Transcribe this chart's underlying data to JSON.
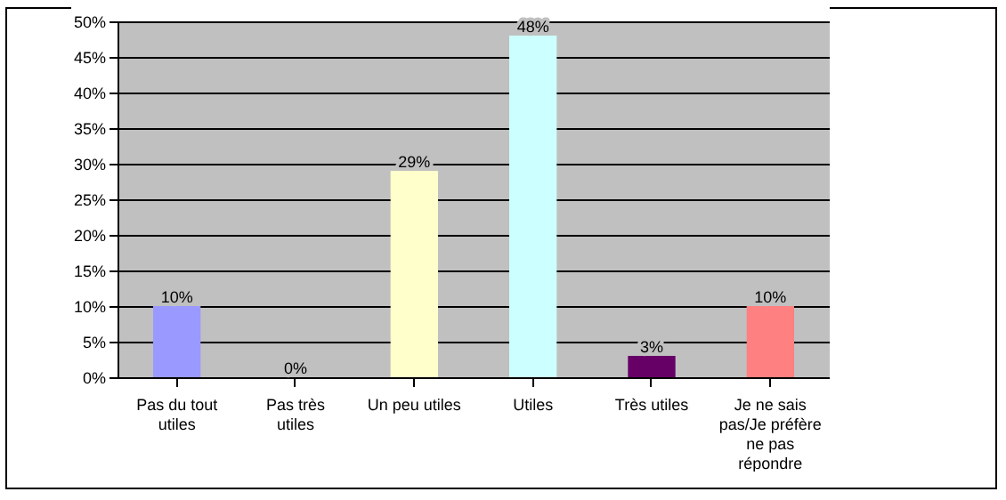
{
  "chart_data": {
    "type": "bar",
    "categories": [
      "Pas du tout utiles",
      "Pas très utiles",
      "Un peu utiles",
      "Utiles",
      "Très utiles",
      "Je ne sais pas/Je préfère ne pas répondre"
    ],
    "values": [
      10,
      0,
      29,
      48,
      3,
      10
    ],
    "colors": [
      "#9999ff",
      "#993366",
      "#ffffcc",
      "#ccffff",
      "#660066",
      "#ff8080"
    ],
    "value_labels": [
      "10%",
      "0%",
      "29%",
      "48%",
      "3%",
      "10%"
    ],
    "ylim": [
      0,
      50
    ],
    "yticks": [
      {
        "value": 0,
        "label": "0%"
      },
      {
        "value": 5,
        "label": "5%"
      },
      {
        "value": 10,
        "label": "10%"
      },
      {
        "value": 15,
        "label": "15%"
      },
      {
        "value": 20,
        "label": "20%"
      },
      {
        "value": 25,
        "label": "25%"
      },
      {
        "value": 30,
        "label": "30%"
      },
      {
        "value": 35,
        "label": "35%"
      },
      {
        "value": 40,
        "label": "40%"
      },
      {
        "value": 45,
        "label": "45%"
      },
      {
        "value": 50,
        "label": "50%"
      }
    ],
    "grid": "y"
  }
}
